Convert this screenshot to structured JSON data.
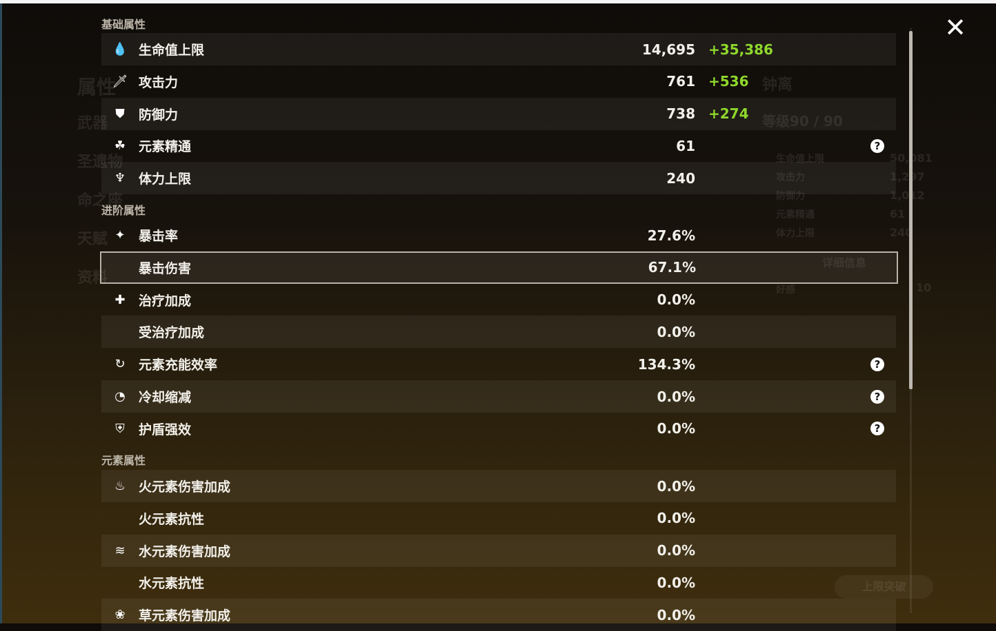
{
  "background": {
    "nav": [
      "属性",
      "武器",
      "圣遗物",
      "命之座",
      "天赋",
      "资料"
    ],
    "character_name": "钟离",
    "level": "等级90 / 90",
    "summary": [
      [
        "生命值上限",
        "50,081"
      ],
      [
        "攻击力",
        "1,297"
      ],
      [
        "防御力",
        "1,012"
      ],
      [
        "元素精通",
        "61"
      ],
      [
        "体力上限",
        "240"
      ]
    ],
    "details_button": "详细信息",
    "friendship": [
      "好感",
      "10"
    ],
    "ascend_button": "上限突破"
  },
  "sections": [
    {
      "title": "基础属性",
      "rows": [
        {
          "icon": "hp-drop-icon",
          "glyph": "💧",
          "label": "生命值上限",
          "value": "14,695",
          "bonus": "+35,386",
          "lite": true
        },
        {
          "icon": "sword-icon",
          "glyph": "🗡",
          "label": "攻击力",
          "value": "761",
          "bonus": "+536"
        },
        {
          "icon": "shield-icon",
          "glyph": "⛊",
          "label": "防御力",
          "value": "738",
          "bonus": "+274",
          "lite": true
        },
        {
          "icon": "elemental-mastery-icon",
          "glyph": "☘",
          "label": "元素精通",
          "value": "61",
          "help": true
        },
        {
          "icon": "stamina-icon",
          "glyph": "♆",
          "label": "体力上限",
          "value": "240",
          "lite": true
        }
      ]
    },
    {
      "title": "进阶属性",
      "rows": [
        {
          "icon": "crit-rate-icon",
          "glyph": "✦",
          "label": "暴击率",
          "value": "27.6%"
        },
        {
          "icon": "",
          "label": "暴击伤害",
          "value": "67.1%",
          "selected": true
        },
        {
          "icon": "healing-icon",
          "glyph": "✚",
          "label": "治疗加成",
          "value": "0.0%"
        },
        {
          "icon": "",
          "label": "受治疗加成",
          "value": "0.0%",
          "lite": true
        },
        {
          "icon": "energy-recharge-icon",
          "glyph": "↻",
          "label": "元素充能效率",
          "value": "134.3%",
          "help": true
        },
        {
          "icon": "cooldown-icon",
          "glyph": "◔",
          "label": "冷却缩减",
          "value": "0.0%",
          "help": true,
          "lite": true
        },
        {
          "icon": "shield-strength-icon",
          "glyph": "⛨",
          "label": "护盾强效",
          "value": "0.0%",
          "help": true
        }
      ]
    },
    {
      "title": "元素属性",
      "rows": [
        {
          "icon": "pyro-icon",
          "glyph": "♨",
          "label": "火元素伤害加成",
          "value": "0.0%",
          "lite": true
        },
        {
          "icon": "",
          "label": "火元素抗性",
          "value": "0.0%"
        },
        {
          "icon": "hydro-icon",
          "glyph": "≋",
          "label": "水元素伤害加成",
          "value": "0.0%",
          "lite": true
        },
        {
          "icon": "",
          "label": "水元素抗性",
          "value": "0.0%"
        },
        {
          "icon": "dendro-icon",
          "glyph": "❀",
          "label": "草元素伤害加成",
          "value": "0.0%",
          "lite": true
        }
      ]
    }
  ],
  "help_glyph": "?",
  "close_glyph": "✕"
}
